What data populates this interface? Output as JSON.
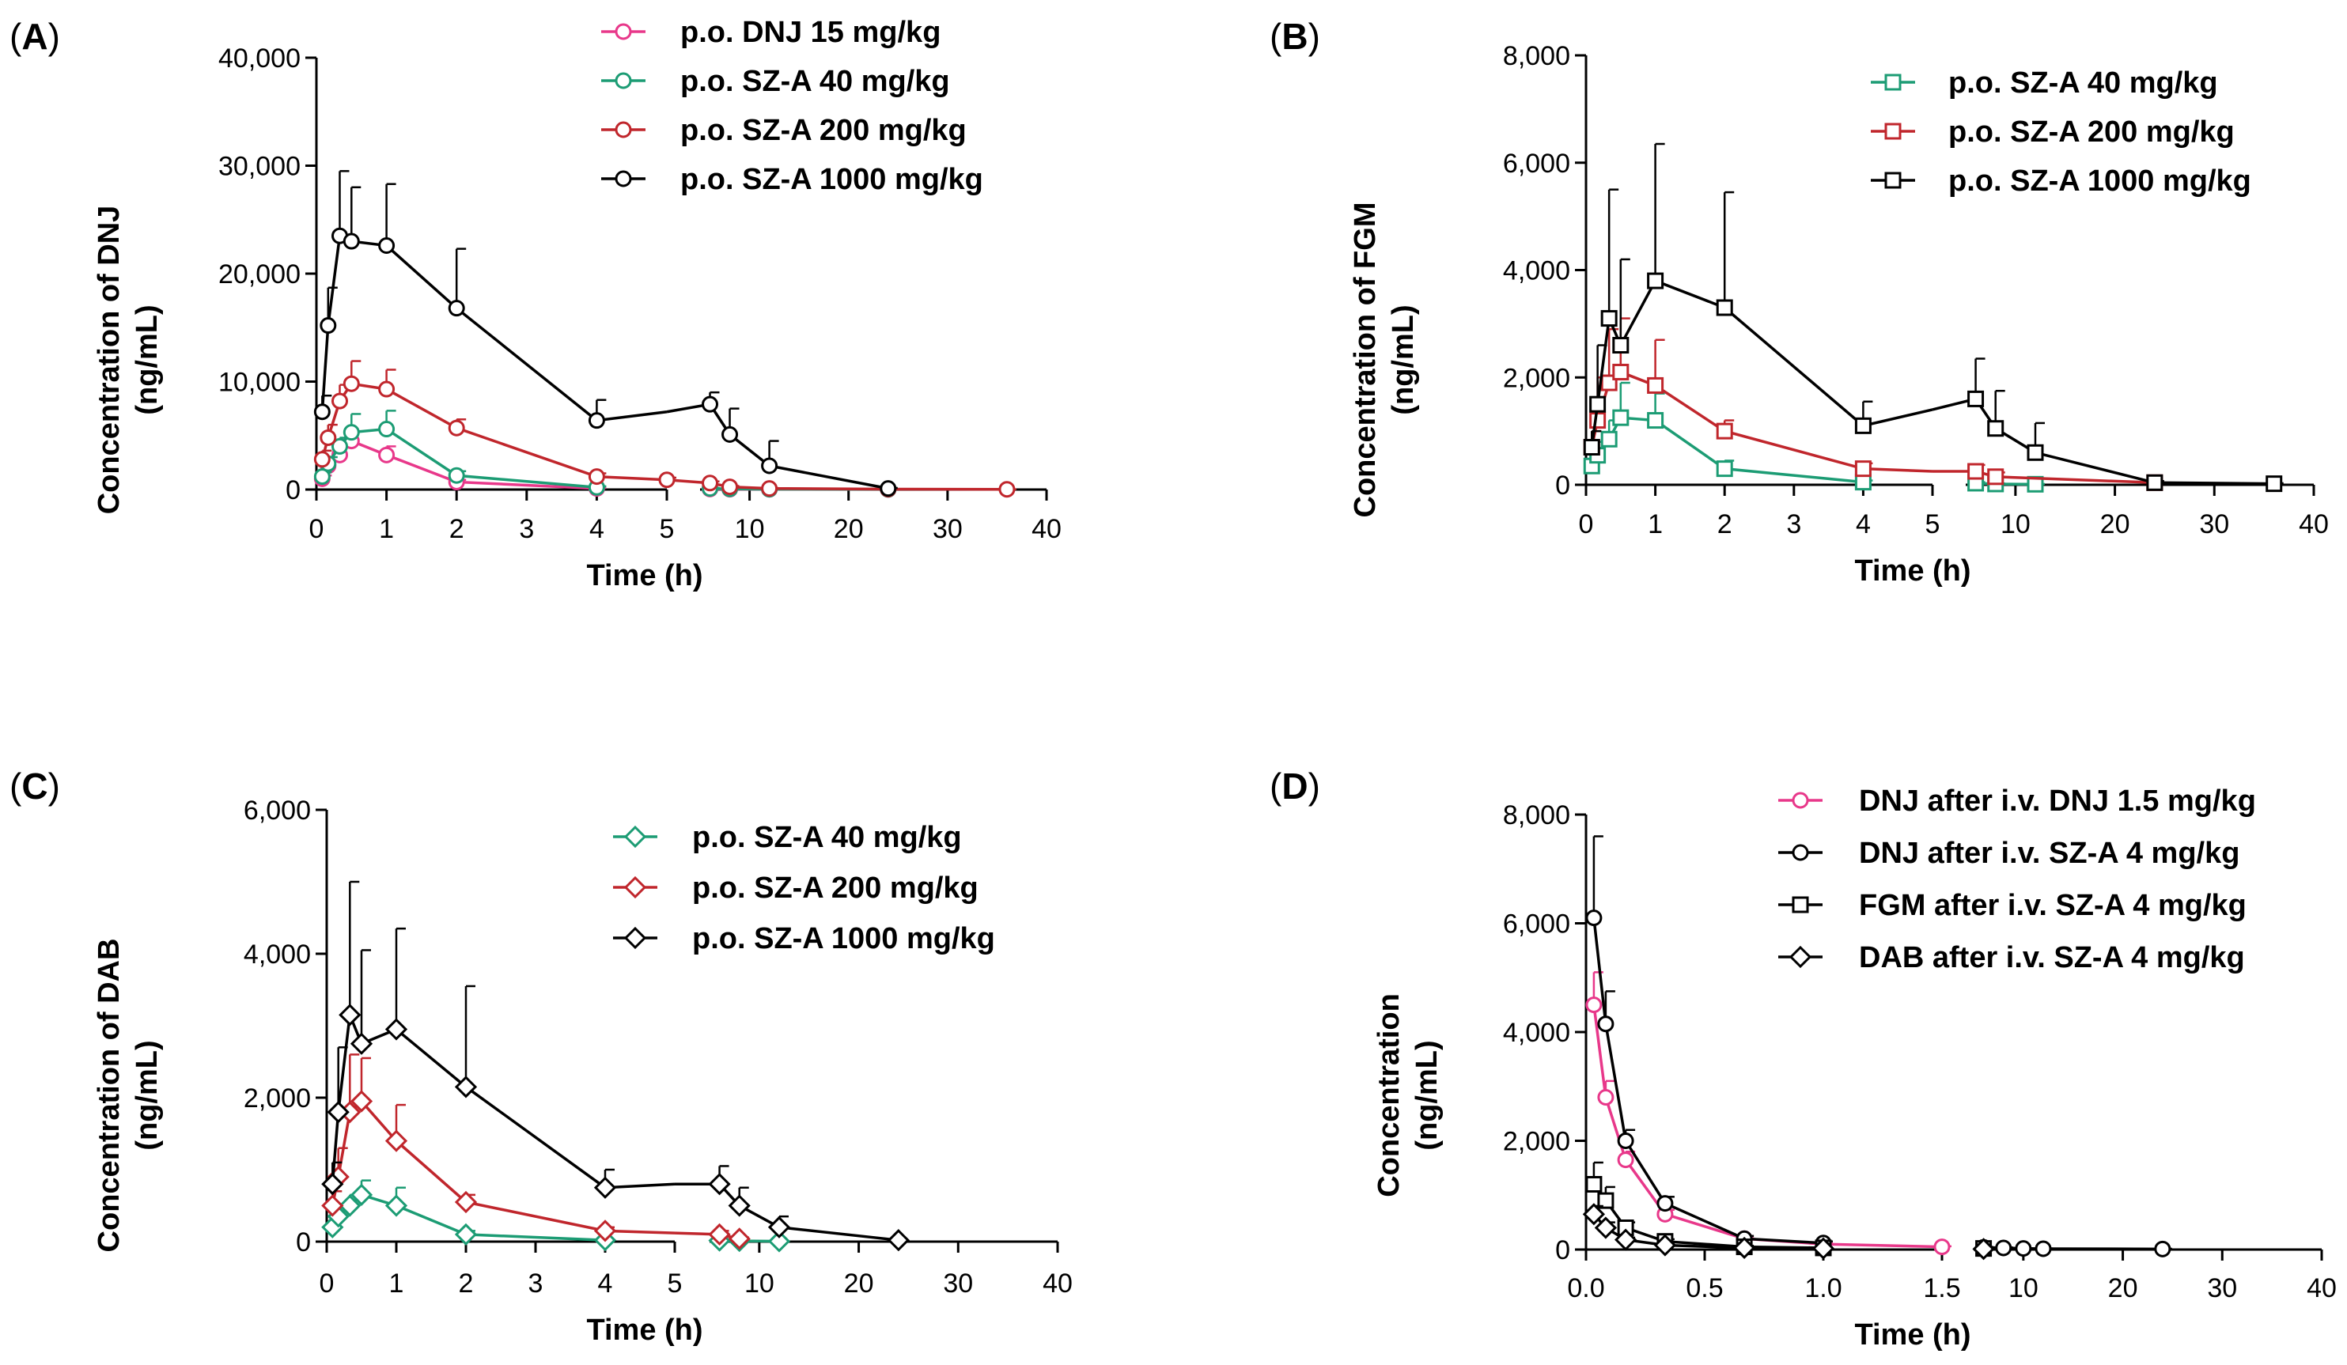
{
  "figure": {
    "panels": [
      {
        "id": "A",
        "label_parts": [
          "(",
          "A",
          ")"
        ],
        "ylabel": [
          "Concentration of DNJ",
          "(ng/mL)"
        ],
        "xlabel": "Time (h)",
        "ylim": [
          0,
          40000
        ],
        "yticks": [
          0,
          10000,
          20000,
          30000,
          40000
        ],
        "ytick_labels": [
          "0",
          "10,000",
          "20,000",
          "30,000",
          "40,000"
        ],
        "x_seg1": [
          0,
          5
        ],
        "x_seg2": [
          5,
          40
        ],
        "xticks1": [
          0,
          1,
          2,
          3,
          4,
          5
        ],
        "xtick_labels1": [
          "0",
          "1",
          "2",
          "3",
          "4",
          "5"
        ],
        "xticks2": [
          10,
          20,
          30,
          40
        ],
        "xtick_labels2": [
          "10",
          "20",
          "30",
          "40"
        ],
        "legend": [
          {
            "label": "p.o. DNJ 15 mg/kg",
            "color": "#e8388a",
            "marker": "circle"
          },
          {
            "label": "p.o. SZ-A 40 mg/kg",
            "color": "#1c9c74",
            "marker": "circle"
          },
          {
            "label": "p.o. SZ-A 200 mg/kg",
            "color": "#c0262c",
            "marker": "circle"
          },
          {
            "label": "p.o. SZ-A 1000 mg/kg",
            "color": "#000000",
            "marker": "circle"
          }
        ]
      },
      {
        "id": "B",
        "label_parts": [
          "(",
          "B",
          ")"
        ],
        "ylabel": [
          "Concentration of FGM",
          "(ng/mL)"
        ],
        "xlabel": "Time (h)",
        "ylim": [
          0,
          8000
        ],
        "yticks": [
          0,
          2000,
          4000,
          6000,
          8000
        ],
        "ytick_labels": [
          "0",
          "2,000",
          "4,000",
          "6,000",
          "8,000"
        ],
        "x_seg1": [
          0,
          5
        ],
        "x_seg2": [
          5,
          40
        ],
        "xticks1": [
          0,
          1,
          2,
          3,
          4,
          5
        ],
        "xtick_labels1": [
          "0",
          "1",
          "2",
          "3",
          "4",
          "5"
        ],
        "xticks2": [
          10,
          20,
          30,
          40
        ],
        "xtick_labels2": [
          "10",
          "20",
          "30",
          "40"
        ],
        "legend": [
          {
            "label": "p.o. SZ-A 40 mg/kg",
            "color": "#1c9c74",
            "marker": "square"
          },
          {
            "label": "p.o. SZ-A 200 mg/kg",
            "color": "#c0262c",
            "marker": "square"
          },
          {
            "label": "p.o. SZ-A 1000 mg/kg",
            "color": "#000000",
            "marker": "square"
          }
        ]
      },
      {
        "id": "C",
        "label_parts": [
          "(",
          "C",
          ")"
        ],
        "ylabel": [
          "Concentration of DAB",
          "(ng/mL)"
        ],
        "xlabel": "Time (h)",
        "ylim": [
          0,
          6000
        ],
        "yticks": [
          0,
          2000,
          4000,
          6000
        ],
        "ytick_labels": [
          "0",
          "2,000",
          "4,000",
          "6,000"
        ],
        "x_seg1": [
          0,
          5
        ],
        "x_seg2": [
          5,
          40
        ],
        "xticks1": [
          0,
          1,
          2,
          3,
          4,
          5
        ],
        "xtick_labels1": [
          "0",
          "1",
          "2",
          "3",
          "4",
          "5"
        ],
        "xticks2": [
          10,
          20,
          30,
          40
        ],
        "xtick_labels2": [
          "10",
          "20",
          "30",
          "40"
        ],
        "legend": [
          {
            "label": "p.o. SZ-A 40 mg/kg",
            "color": "#1c9c74",
            "marker": "diamond"
          },
          {
            "label": "p.o. SZ-A 200 mg/kg",
            "color": "#c0262c",
            "marker": "diamond"
          },
          {
            "label": "p.o. SZ-A 1000 mg/kg",
            "color": "#000000",
            "marker": "diamond"
          }
        ]
      },
      {
        "id": "D",
        "label_parts": [
          "(",
          "D",
          ")"
        ],
        "ylabel": [
          "Concentration",
          "(ng/mL)"
        ],
        "xlabel": "Time (h)",
        "ylim": [
          0,
          8000
        ],
        "yticks": [
          0,
          2000,
          4000,
          6000,
          8000
        ],
        "ytick_labels": [
          "0",
          "2,000",
          "4,000",
          "6,000",
          "8,000"
        ],
        "x_seg1": [
          0,
          1.5
        ],
        "x_seg2": [
          5,
          40
        ],
        "xticks1": [
          0,
          0.5,
          1.0,
          1.5
        ],
        "xtick_labels1": [
          "0.0",
          "0.5",
          "1.0",
          "1.5"
        ],
        "xticks2": [
          10,
          20,
          30,
          40
        ],
        "xtick_labels2": [
          "10",
          "20",
          "30",
          "40"
        ],
        "legend": [
          {
            "label": "DNJ after i.v. DNJ 1.5 mg/kg",
            "color": "#e8388a",
            "marker": "circle"
          },
          {
            "label": "DNJ after i.v. SZ-A 4 mg/kg",
            "color": "#000000",
            "marker": "circle"
          },
          {
            "label": "FGM after i.v. SZ-A 4 mg/kg",
            "color": "#000000",
            "marker": "square"
          },
          {
            "label": "DAB after i.v. SZ-A 4 mg/kg",
            "color": "#000000",
            "marker": "diamond"
          }
        ]
      }
    ]
  },
  "chart_data": [
    {
      "type": "line",
      "panel": "A",
      "title": "",
      "xlabel": "Time (h)",
      "ylabel": "Concentration of DNJ (ng/mL)",
      "ylim": [
        0,
        40000
      ],
      "series": [
        {
          "name": "p.o. DNJ 15 mg/kg",
          "color": "#e8388a",
          "marker": "circle",
          "x": [
            0.083,
            0.167,
            0.333,
            0.5,
            1,
            2,
            4,
            6,
            8,
            12,
            24
          ],
          "y": [
            1000,
            2200,
            3200,
            4500,
            3200,
            700,
            100,
            50,
            30,
            20,
            10
          ],
          "err": [
            300,
            500,
            700,
            900,
            800,
            200,
            50,
            20,
            10,
            10,
            5
          ]
        },
        {
          "name": "p.o. SZ-A 40 mg/kg",
          "color": "#1c9c74",
          "marker": "circle",
          "x": [
            0.083,
            0.167,
            0.333,
            0.5,
            1,
            2,
            4,
            6,
            8,
            12,
            24
          ],
          "y": [
            1200,
            2400,
            4000,
            5300,
            5600,
            1300,
            200,
            100,
            60,
            30,
            15
          ],
          "err": [
            400,
            600,
            800,
            1700,
            1700,
            400,
            100,
            50,
            30,
            20,
            10
          ]
        },
        {
          "name": "p.o. SZ-A 200 mg/kg",
          "color": "#c0262c",
          "marker": "circle",
          "x": [
            0.083,
            0.167,
            0.333,
            0.5,
            1,
            2,
            4,
            5,
            6,
            8,
            12,
            24,
            36
          ],
          "y": [
            2800,
            4800,
            8200,
            9800,
            9300,
            5700,
            1200,
            900,
            600,
            250,
            100,
            40,
            20
          ],
          "err": [
            800,
            1200,
            1500,
            2100,
            1800,
            800,
            300,
            200,
            150,
            80,
            40,
            20,
            10
          ]
        },
        {
          "name": "p.o. SZ-A 1000 mg/kg",
          "color": "#000000",
          "marker": "circle",
          "x": [
            0.083,
            0.167,
            0.333,
            0.5,
            1,
            2,
            4,
            5,
            6,
            8,
            12,
            24
          ],
          "y": [
            7200,
            15200,
            23500,
            23000,
            22600,
            16800,
            6400,
            7200,
            7900,
            5100,
            2200,
            100
          ],
          "err": [
            1500,
            3500,
            6000,
            5000,
            5700,
            5500,
            1900,
            0,
            1100,
            2400,
            2300,
            50
          ]
        }
      ]
    },
    {
      "type": "line",
      "panel": "B",
      "title": "",
      "xlabel": "Time (h)",
      "ylabel": "Concentration of FGM (ng/mL)",
      "ylim": [
        0,
        8000
      ],
      "series": [
        {
          "name": "p.o. SZ-A 40 mg/kg",
          "color": "#1c9c74",
          "marker": "square",
          "x": [
            0.083,
            0.167,
            0.333,
            0.5,
            1,
            2,
            4,
            6,
            8,
            12
          ],
          "y": [
            350,
            550,
            850,
            1250,
            1200,
            300,
            50,
            30,
            15,
            10
          ],
          "err": [
            150,
            250,
            350,
            650,
            500,
            150,
            30,
            20,
            10,
            5
          ]
        },
        {
          "name": "p.o. SZ-A 200 mg/kg",
          "color": "#c0262c",
          "marker": "square",
          "x": [
            0.083,
            0.167,
            0.333,
            0.5,
            1,
            2,
            4,
            5,
            6,
            8,
            24
          ],
          "y": [
            700,
            1200,
            1900,
            2100,
            1850,
            1000,
            300,
            250,
            250,
            150,
            40
          ],
          "err": [
            300,
            800,
            1000,
            1000,
            850,
            200,
            100,
            0,
            120,
            80,
            20
          ]
        },
        {
          "name": "p.o. SZ-A 1000 mg/kg",
          "color": "#000000",
          "marker": "square",
          "x": [
            0.083,
            0.167,
            0.333,
            0.5,
            1,
            2,
            4,
            5,
            6,
            8,
            12,
            24,
            36
          ],
          "y": [
            700,
            1500,
            3100,
            2600,
            3800,
            3300,
            1100,
            1400,
            1600,
            1050,
            600,
            40,
            20
          ],
          "err": [
            300,
            1100,
            2400,
            1600,
            2550,
            2150,
            450,
            0,
            750,
            700,
            550,
            30,
            10
          ]
        }
      ]
    },
    {
      "type": "line",
      "panel": "C",
      "title": "",
      "xlabel": "Time (h)",
      "ylabel": "Concentration of DAB (ng/mL)",
      "ylim": [
        0,
        6000
      ],
      "series": [
        {
          "name": "p.o. SZ-A 40 mg/kg",
          "color": "#1c9c74",
          "marker": "diamond",
          "x": [
            0.083,
            0.167,
            0.333,
            0.5,
            1,
            2,
            4,
            6,
            8,
            12
          ],
          "y": [
            200,
            350,
            500,
            650,
            500,
            100,
            20,
            15,
            10,
            5
          ],
          "err": [
            80,
            120,
            150,
            200,
            250,
            50,
            10,
            10,
            5,
            5
          ]
        },
        {
          "name": "p.o. SZ-A 200 mg/kg",
          "color": "#c0262c",
          "marker": "diamond",
          "x": [
            0.083,
            0.167,
            0.333,
            0.5,
            1,
            2,
            4,
            5,
            6,
            8
          ],
          "y": [
            500,
            900,
            1800,
            1950,
            1400,
            550,
            150,
            120,
            100,
            40
          ],
          "err": [
            200,
            400,
            800,
            600,
            500,
            100,
            50,
            0,
            50,
            20
          ]
        },
        {
          "name": "p.o. SZ-A 1000 mg/kg",
          "color": "#000000",
          "marker": "diamond",
          "x": [
            0.083,
            0.167,
            0.333,
            0.5,
            1,
            2,
            4,
            5,
            6,
            8,
            12,
            24
          ],
          "y": [
            800,
            1800,
            3150,
            2750,
            2950,
            2150,
            750,
            800,
            800,
            500,
            200,
            20
          ],
          "err": [
            300,
            900,
            1850,
            1300,
            1400,
            1400,
            250,
            0,
            250,
            250,
            150,
            10
          ]
        }
      ]
    },
    {
      "type": "line",
      "panel": "D",
      "title": "",
      "xlabel": "Time (h)",
      "ylabel": "Concentration (ng/mL)",
      "ylim": [
        0,
        8000
      ],
      "series": [
        {
          "name": "DNJ after i.v. DNJ 1.5 mg/kg",
          "color": "#e8388a",
          "marker": "circle",
          "x": [
            0.033,
            0.083,
            0.167,
            0.333,
            0.667,
            1.0,
            1.5
          ],
          "y": [
            4500,
            2800,
            1650,
            650,
            200,
            100,
            50
          ],
          "err": [
            600,
            300,
            150,
            80,
            40,
            20,
            10
          ]
        },
        {
          "name": "DNJ after i.v. SZ-A 4 mg/kg",
          "color": "#000000",
          "marker": "circle",
          "x": [
            0.033,
            0.083,
            0.167,
            0.333,
            0.667,
            1.0,
            6,
            8,
            10,
            12,
            24
          ],
          "y": [
            6100,
            4150,
            2000,
            850,
            200,
            120,
            40,
            30,
            20,
            15,
            10
          ],
          "err": [
            1500,
            600,
            200,
            120,
            50,
            30,
            10,
            10,
            5,
            5,
            5
          ]
        },
        {
          "name": "FGM after i.v. SZ-A 4 mg/kg",
          "color": "#000000",
          "marker": "square",
          "x": [
            0.033,
            0.083,
            0.167,
            0.333,
            0.667,
            1.0,
            6
          ],
          "y": [
            1200,
            900,
            400,
            150,
            50,
            30,
            20
          ],
          "err": [
            400,
            250,
            100,
            40,
            20,
            10,
            5
          ]
        },
        {
          "name": "DAB after i.v. SZ-A 4 mg/kg",
          "color": "#000000",
          "marker": "diamond",
          "x": [
            0.033,
            0.083,
            0.167,
            0.333,
            0.667,
            1.0,
            6
          ],
          "y": [
            650,
            400,
            180,
            80,
            30,
            20,
            10
          ],
          "err": [
            150,
            100,
            40,
            20,
            10,
            5,
            5
          ]
        }
      ]
    }
  ]
}
